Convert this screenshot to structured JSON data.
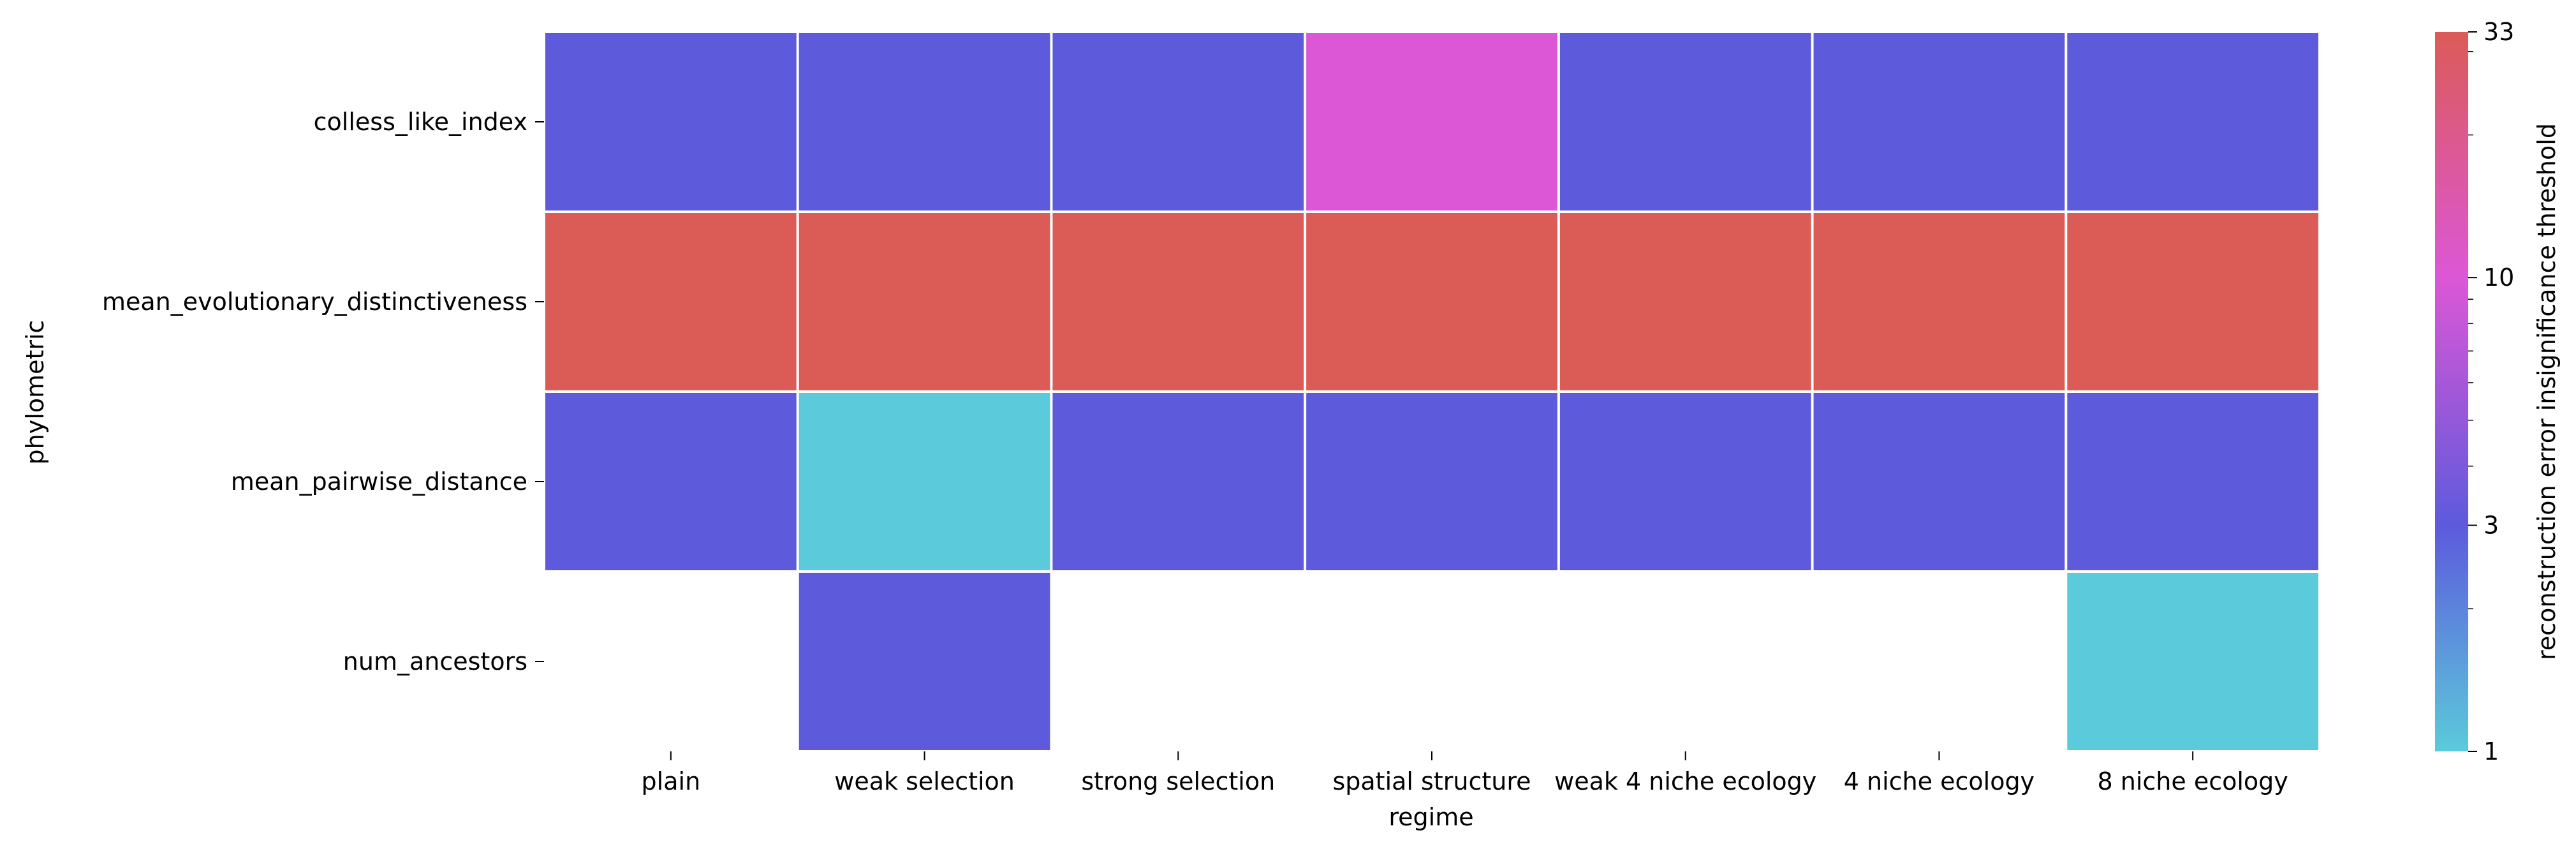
{
  "chart_data": {
    "type": "heatmap",
    "xlabel": "regime",
    "ylabel": "phylometric",
    "x_categories": [
      "plain",
      "weak selection",
      "strong selection",
      "spatial structure",
      "weak 4 niche ecology",
      "4 niche ecology",
      "8 niche ecology"
    ],
    "y_categories": [
      "colless_like_index",
      "mean_evolutionary_distinctiveness",
      "mean_pairwise_distance",
      "num_ancestors"
    ],
    "values": [
      [
        3,
        3,
        3,
        10,
        3,
        3,
        3
      ],
      [
        33,
        33,
        33,
        33,
        33,
        33,
        33
      ],
      [
        3,
        1,
        3,
        3,
        3,
        3,
        3
      ],
      [
        null,
        3,
        null,
        null,
        null,
        null,
        1
      ]
    ],
    "colorbar": {
      "label": "reconstruction error insignificance threshold",
      "scale": "log",
      "range": [
        1,
        33
      ],
      "ticks": [
        1,
        3,
        10,
        33
      ],
      "tick_labels": [
        "1",
        "3",
        "10",
        "33"
      ],
      "colors": [
        {
          "value": 1,
          "color": "#5bcadb"
        },
        {
          "value": 3,
          "color": "#5d5adc"
        },
        {
          "value": 10,
          "color": "#dc57d6"
        },
        {
          "value": 33,
          "color": "#db5b57"
        }
      ]
    },
    "missing_color": "#ffffff",
    "cell_border_color": "#ffffff",
    "grid": false
  }
}
